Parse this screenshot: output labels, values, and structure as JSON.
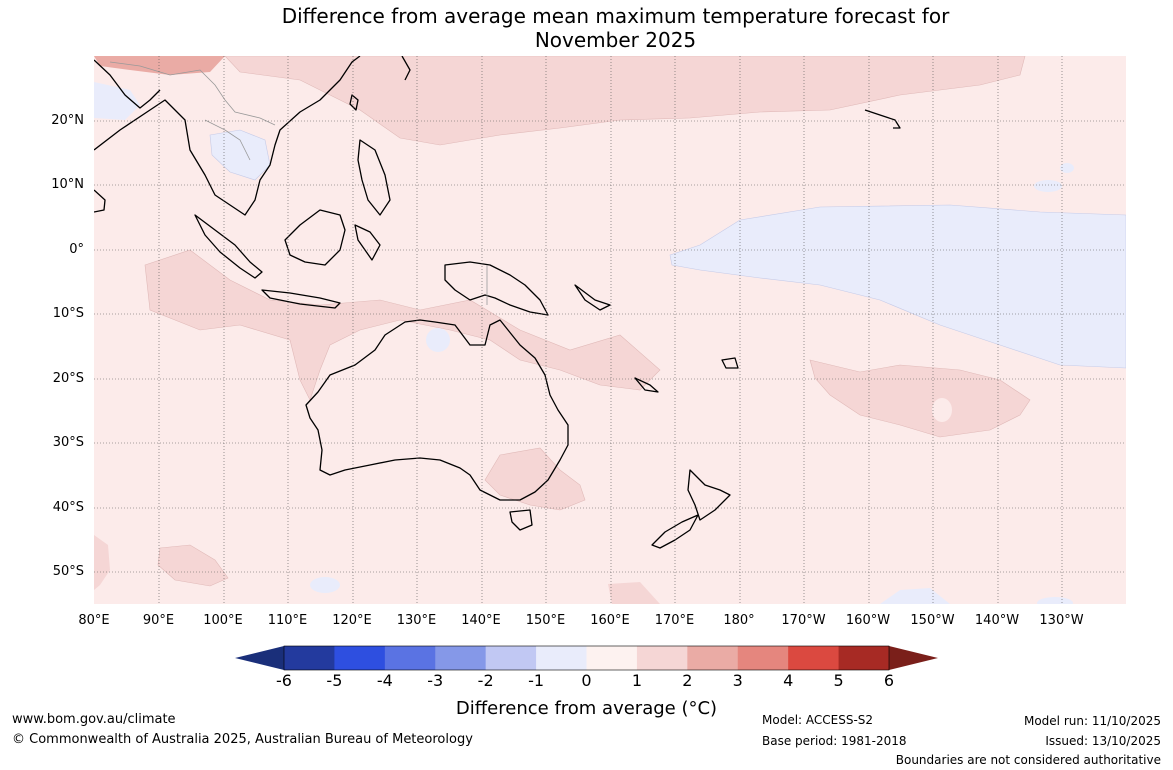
{
  "title": {
    "line1": "Difference from average mean maximum temperature forecast for",
    "line2": "November 2025"
  },
  "map": {
    "lat_labels": [
      "20°N",
      "10°N",
      "0°",
      "10°S",
      "20°S",
      "30°S",
      "40°S",
      "50°S"
    ],
    "lon_labels": [
      "80°E",
      "90°E",
      "100°E",
      "110°E",
      "120°E",
      "130°E",
      "140°E",
      "150°E",
      "160°E",
      "170°E",
      "180°",
      "170°W",
      "160°W",
      "150°W",
      "140°W",
      "130°W"
    ],
    "colors": {
      "band_0_1": "#fcebea",
      "band_1_2": "#f5d6d5",
      "band_2_3": "#eaaba5",
      "band_neg1_0": "#e9ecfb",
      "band_neg2_neg1": "#c2c9f3",
      "coast": "#000000",
      "border": "#999999"
    }
  },
  "colorbar": {
    "ticks": [
      "-6",
      "-5",
      "-4",
      "-3",
      "-2",
      "-1",
      "0",
      "1",
      "2",
      "3",
      "4",
      "5",
      "6"
    ],
    "colors": [
      "#233a9e",
      "#2e4fe0",
      "#5a73e3",
      "#8598e8",
      "#c1c8f3",
      "#e9ecfb",
      "#fdf2f0",
      "#f5d6d5",
      "#eaaba5",
      "#e5867e",
      "#db4940",
      "#a72a24"
    ],
    "low_extend_color": "#1a2f7a",
    "high_extend_color": "#7a1f1a",
    "label": "Difference from average (°C)"
  },
  "footer": {
    "website": "www.bom.gov.au/climate",
    "copyright": "© Commonwealth of Australia 2025, Australian Bureau of Meteorology",
    "model": "Model: ACCESS-S2",
    "base_period": "Base period: 1981-2018",
    "model_run": "Model run: 11/10/2025",
    "issued": "Issued: 13/10/2025",
    "disclaimer": "Boundaries are not considered authoritative"
  }
}
